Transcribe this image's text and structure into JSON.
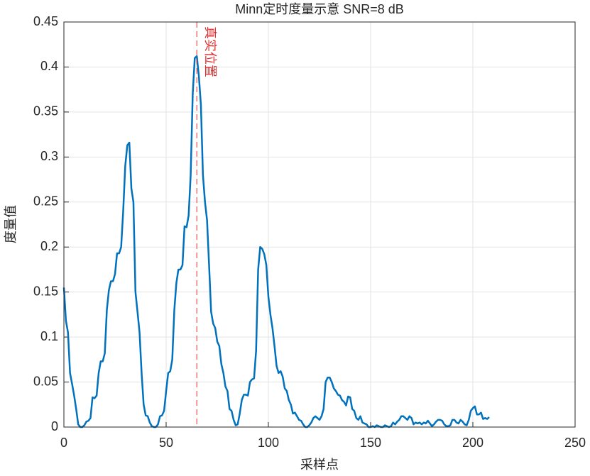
{
  "chart_data": {
    "type": "line",
    "title": "Minn定时度量示意  SNR=8 dB",
    "xlabel": "采样点",
    "ylabel": "度量值",
    "x": [
      0,
      1,
      2,
      3,
      4,
      5,
      6,
      7,
      8,
      9,
      10,
      11,
      12,
      13,
      14,
      15,
      16,
      17,
      18,
      19,
      20,
      21,
      22,
      23,
      24,
      25,
      26,
      27,
      28,
      29,
      30,
      31,
      32,
      33,
      34,
      35,
      36,
      37,
      38,
      39,
      40,
      41,
      42,
      43,
      44,
      45,
      46,
      47,
      48,
      49,
      50,
      51,
      52,
      53,
      54,
      55,
      56,
      57,
      58,
      59,
      60,
      61,
      62,
      63,
      64,
      65,
      66,
      67,
      68,
      69,
      70,
      71,
      72,
      73,
      74,
      75,
      76,
      77,
      78,
      79,
      80,
      81,
      82,
      83,
      84,
      85,
      86,
      87,
      88,
      89,
      90,
      91,
      92,
      93,
      94,
      95,
      96,
      97,
      98,
      99,
      100,
      101,
      102,
      103,
      104,
      105,
      106,
      107,
      108,
      109,
      110,
      111,
      112,
      113,
      114,
      115,
      116,
      117,
      118,
      119,
      120,
      121,
      122,
      123,
      124,
      125,
      126,
      127,
      128,
      129,
      130,
      131,
      132,
      133,
      134,
      135,
      136,
      137,
      138,
      139,
      140,
      141,
      142,
      143,
      144,
      145,
      146,
      147,
      148,
      149,
      150,
      151,
      152,
      153,
      154,
      155,
      156,
      157,
      158,
      159,
      160,
      161,
      162,
      163,
      164,
      165,
      166,
      167,
      168,
      169,
      170,
      171,
      172,
      173,
      174,
      175,
      176,
      177,
      178,
      179,
      180,
      181,
      182,
      183,
      184,
      185,
      186,
      187,
      188,
      189,
      190,
      191,
      192,
      193,
      194,
      195,
      196,
      197,
      198,
      199,
      200,
      201,
      202,
      203,
      204,
      205,
      206,
      207,
      208
    ],
    "series": [
      {
        "color": "#0072bd",
        "values": [
          0.155,
          0.118,
          0.105,
          0.06,
          0.048,
          0.035,
          0.02,
          0.003,
          0.0,
          0.0,
          0.002,
          0.006,
          0.007,
          0.01,
          0.033,
          0.032,
          0.035,
          0.06,
          0.073,
          0.073,
          0.082,
          0.13,
          0.152,
          0.162,
          0.162,
          0.17,
          0.193,
          0.193,
          0.2,
          0.24,
          0.29,
          0.313,
          0.316,
          0.265,
          0.25,
          0.15,
          0.128,
          0.105,
          0.06,
          0.025,
          0.013,
          0.012,
          0.005,
          0.001,
          0.0,
          0.0,
          0.003,
          0.012,
          0.013,
          0.018,
          0.04,
          0.06,
          0.062,
          0.075,
          0.13,
          0.16,
          0.175,
          0.175,
          0.18,
          0.223,
          0.222,
          0.235,
          0.28,
          0.37,
          0.41,
          0.412,
          0.39,
          0.358,
          0.28,
          0.25,
          0.23,
          0.18,
          0.128,
          0.115,
          0.11,
          0.095,
          0.09,
          0.07,
          0.06,
          0.045,
          0.04,
          0.02,
          0.018,
          0.008,
          0.002,
          0.003,
          0.015,
          0.03,
          0.036,
          0.036,
          0.035,
          0.05,
          0.053,
          0.054,
          0.085,
          0.175,
          0.2,
          0.198,
          0.192,
          0.18,
          0.145,
          0.125,
          0.11,
          0.09,
          0.068,
          0.06,
          0.062,
          0.056,
          0.043,
          0.04,
          0.03,
          0.025,
          0.015,
          0.016,
          0.012,
          0.008,
          0.007,
          0.003,
          0.0,
          0.0,
          0.002,
          0.005,
          0.01,
          0.012,
          0.01,
          0.008,
          0.012,
          0.02,
          0.05,
          0.055,
          0.055,
          0.05,
          0.043,
          0.04,
          0.036,
          0.035,
          0.03,
          0.028,
          0.024,
          0.034,
          0.033,
          0.02,
          0.018,
          0.01,
          0.008,
          0.012,
          0.005,
          0.004,
          0.003,
          0.0,
          0.0,
          0.001,
          0.0,
          0.002,
          0.001,
          0.0,
          0.0,
          0.002,
          0.001,
          0.0,
          0.001,
          0.005,
          0.003,
          0.006,
          0.008,
          0.012,
          0.012,
          0.01,
          0.008,
          0.012,
          0.01,
          0.003,
          0.005,
          0.004,
          0.005,
          0.003,
          0.005,
          0.004,
          0.007,
          0.004,
          0.001,
          0.003,
          0.006,
          0.008,
          0.008,
          0.007,
          0.003,
          0.001,
          0.001,
          0.002,
          0.008,
          0.008,
          0.005,
          0.004,
          0.008,
          0.006,
          0.003,
          0.002,
          0.008,
          0.018,
          0.021,
          0.023,
          0.014,
          0.014,
          0.016,
          0.009,
          0.01,
          0.009,
          0.011
        ]
      }
    ],
    "annotations": [
      {
        "x": 65,
        "text": "真实位置",
        "color": "#e03030"
      }
    ],
    "xlim": [
      0,
      250
    ],
    "xticks": [
      0,
      50,
      100,
      150,
      200,
      250
    ],
    "ylim": [
      0,
      0.45
    ],
    "yticks": [
      0,
      0.05,
      0.1,
      0.15,
      0.2,
      0.25,
      0.3,
      0.35,
      0.4,
      0.45
    ],
    "grid": true
  }
}
